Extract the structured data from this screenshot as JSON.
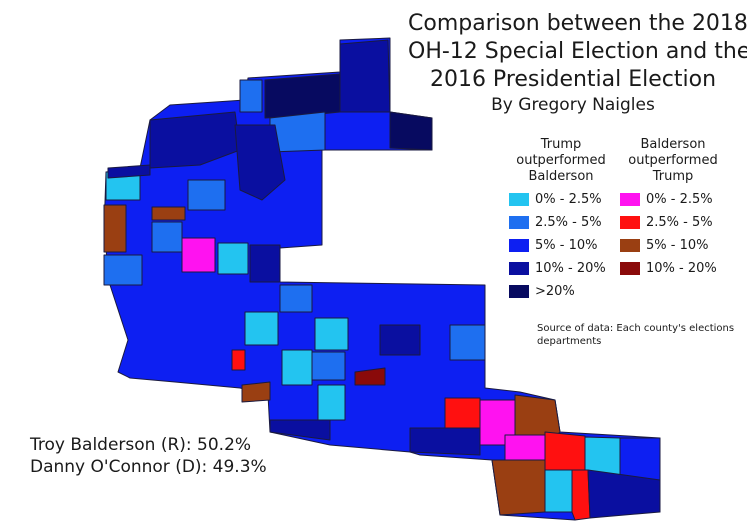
{
  "title_lines": [
    "Comparison between the 2018",
    "OH-12 Special Election and the",
    "2016 Presidential Election"
  ],
  "byline": "By Gregory Naigles",
  "legend": {
    "trump_heading": [
      "Trump",
      "outperformed",
      "Balderson"
    ],
    "balderson_heading": [
      "Balderson",
      "outperformed",
      "Trump"
    ],
    "trump_items": [
      {
        "label": "0% - 2.5%",
        "color": "#23c4f0"
      },
      {
        "label": "2.5% - 5%",
        "color": "#1e6ff0"
      },
      {
        "label": "5% - 10%",
        "color": "#0d1ff2"
      },
      {
        "label": "10% - 20%",
        "color": "#0a0fa0"
      },
      {
        "label": ">20%",
        "color": "#070a60"
      }
    ],
    "balderson_items": [
      {
        "label": "0% - 2.5%",
        "color": "#ff12f0"
      },
      {
        "label": "2.5% - 5%",
        "color": "#ff1010"
      },
      {
        "label": "5% - 10%",
        "color": "#9a3f12"
      },
      {
        "label": "10% - 20%",
        "color": "#8a0a0a"
      }
    ]
  },
  "source_note": "Source of data: Each county's elections departments",
  "results": [
    "Troy Balderson (R): 50.2%",
    "Danny O'Connor (D): 49.3%"
  ]
}
